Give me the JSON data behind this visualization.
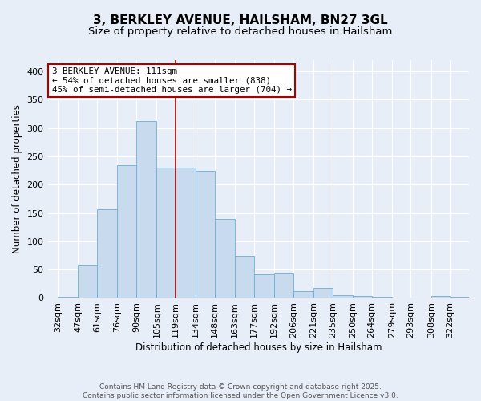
{
  "title": "3, BERKLEY AVENUE, HAILSHAM, BN27 3GL",
  "subtitle": "Size of property relative to detached houses in Hailsham",
  "xlabel": "Distribution of detached houses by size in Hailsham",
  "ylabel": "Number of detached properties",
  "bin_labels": [
    "32sqm",
    "47sqm",
    "61sqm",
    "76sqm",
    "90sqm",
    "105sqm",
    "119sqm",
    "134sqm",
    "148sqm",
    "163sqm",
    "177sqm",
    "192sqm",
    "206sqm",
    "221sqm",
    "235sqm",
    "250sqm",
    "264sqm",
    "279sqm",
    "293sqm",
    "308sqm",
    "322sqm"
  ],
  "bin_edges_numeric": [
    32,
    47,
    61,
    76,
    90,
    105,
    119,
    134,
    148,
    163,
    177,
    192,
    206,
    221,
    235,
    250,
    264,
    279,
    293,
    308,
    322
  ],
  "bar_values": [
    2,
    57,
    157,
    235,
    312,
    230,
    230,
    225,
    140,
    75,
    42,
    43,
    12,
    18,
    5,
    3,
    2,
    0,
    0,
    4,
    2
  ],
  "bar_color": "#c8daee",
  "bar_edge_color": "#6aaed6",
  "annotation_text": "3 BERKLEY AVENUE: 111sqm\n← 54% of detached houses are smaller (838)\n45% of semi-detached houses are larger (704) →",
  "annotation_box_facecolor": "white",
  "annotation_border_color": "#aa0000",
  "vline_color": "#aa0000",
  "bg_color": "#e8eef8",
  "grid_color": "white",
  "footer_text": "Contains HM Land Registry data © Crown copyright and database right 2025.\nContains public sector information licensed under the Open Government Licence v3.0.",
  "ylim": [
    0,
    420
  ],
  "yticks": [
    0,
    50,
    100,
    150,
    200,
    250,
    300,
    350,
    400
  ]
}
